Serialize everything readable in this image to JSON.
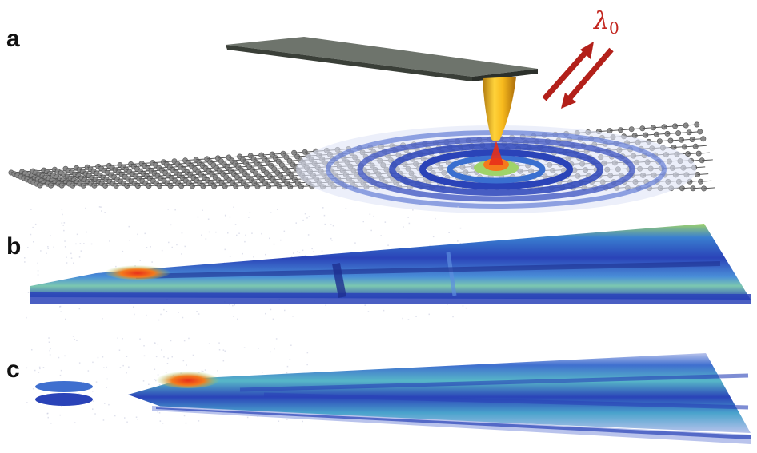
{
  "panels": {
    "a": {
      "label": "a"
    },
    "b": {
      "label": "b"
    },
    "c": {
      "label": "c"
    }
  },
  "wavelength_label": {
    "symbol": "λ",
    "subscript": "0"
  },
  "colors": {
    "cantilever_top": "#6e746c",
    "cantilever_side": "#3a3f38",
    "tip_gold": "#f2b01e",
    "arrow_red": "#b3201a",
    "atoms": "#8a8a8a",
    "bonds": "#555555",
    "field_high": "#e8301a",
    "field_mid": "#9fd36a",
    "field_low": "#2a43b8",
    "field_edge": "#b9c3ec"
  },
  "icons": [
    "cantilever-icon",
    "afm-tip-icon",
    "incident-arrow-icon",
    "scattered-arrow-icon",
    "graphene-lattice-icon"
  ]
}
